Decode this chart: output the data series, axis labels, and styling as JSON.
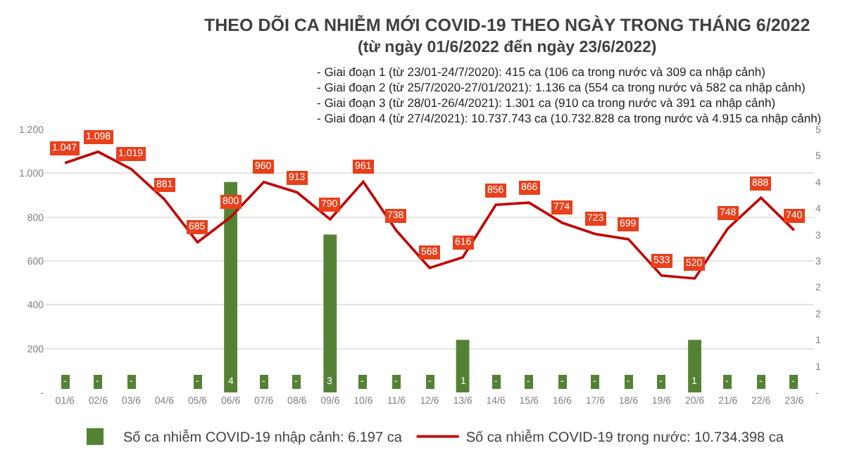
{
  "chart_data": {
    "type": "bar",
    "title": "THEO DÕI CA NHIỄM MỚI COVID-19 THEO NGÀY TRONG THÁNG 6/2022",
    "subtitle": "(từ ngày 01/6/2022 đến ngày 23/6/2022)",
    "annotations": [
      "- Giai đoạn 1 (từ 23/01-24/7/2020): 415 ca (106 ca trong nước và 309 ca nhập cảnh)",
      "- Giai đoạn 2 (từ 25/7/2020-27/01/2021): 1.136 ca (554 ca trong nước và 582 ca nhập cảnh)",
      "- Giai đoạn 3 (từ 28/01-26/4/2021): 1.301 ca (910 ca trong nước và 391 ca nhập cảnh)",
      "- Giai đoạn 4 (từ 27/4/2021): 10.737.743 ca (10.732.828 ca trong nước và 4.915 ca nhập cảnh)"
    ],
    "categories": [
      "01/6",
      "02/6",
      "03/6",
      "04/6",
      "05/6",
      "06/6",
      "07/6",
      "08/6",
      "09/6",
      "10/6",
      "11/6",
      "12/6",
      "13/6",
      "14/6",
      "15/6",
      "16/6",
      "17/6",
      "18/6",
      "19/6",
      "20/6",
      "21/6",
      "22/6",
      "23/6"
    ],
    "series": [
      {
        "name": "Số ca nhiễm COVID-19 nhập cảnh: 6.197 ca",
        "axis": "y2",
        "color": "#548235",
        "values": [
          0,
          0,
          0,
          0,
          0,
          4,
          0,
          0,
          3,
          0,
          0,
          0,
          1,
          0,
          0,
          0,
          0,
          0,
          0,
          1,
          0,
          0,
          0
        ],
        "value_labels": [
          "-",
          "-",
          "-",
          null,
          "-",
          "4",
          "-",
          "-",
          "3",
          "-",
          "-",
          "-",
          "1",
          "-",
          "-",
          "-",
          "-",
          "-",
          "-",
          "1",
          "-",
          "-",
          "-"
        ]
      },
      {
        "name": "Số ca nhiễm COVID-19 trong nước: 10.734.398 ca",
        "type": "line",
        "axis": "y",
        "color": "#c00000",
        "values": [
          1047,
          1098,
          1019,
          881,
          685,
          800,
          960,
          913,
          790,
          961,
          738,
          568,
          616,
          856,
          866,
          774,
          723,
          699,
          533,
          520,
          748,
          888,
          740
        ],
        "value_labels": [
          "1.047",
          "1.098",
          "1.019",
          "881",
          "685",
          "800",
          "960",
          "913",
          "790",
          "961",
          "738",
          "568",
          "616",
          "856",
          "866",
          "774",
          "723",
          "699",
          "533",
          "520",
          "748",
          "888",
          "740"
        ]
      }
    ],
    "ylim": [
      0,
      1200
    ],
    "yticks": [
      {
        "value": 0,
        "label": "-"
      },
      200,
      400,
      600,
      800,
      {
        "value": 1000,
        "label": "1.000"
      },
      {
        "value": 1200,
        "label": "1.200"
      }
    ],
    "y2lim": [
      0,
      5
    ],
    "y2ticks": [
      {
        "value": 0,
        "label": "-"
      },
      {
        "value": 0.5,
        "label": "1"
      },
      1,
      {
        "value": 1.5,
        "label": "2"
      },
      2,
      {
        "value": 2.5,
        "label": "3"
      },
      3,
      {
        "value": 3.5,
        "label": "4"
      },
      4,
      {
        "value": 4.5,
        "label": "5"
      },
      5
    ],
    "grid": "y",
    "legend": "bottom",
    "marker": "none",
    "line_style": "solid"
  }
}
